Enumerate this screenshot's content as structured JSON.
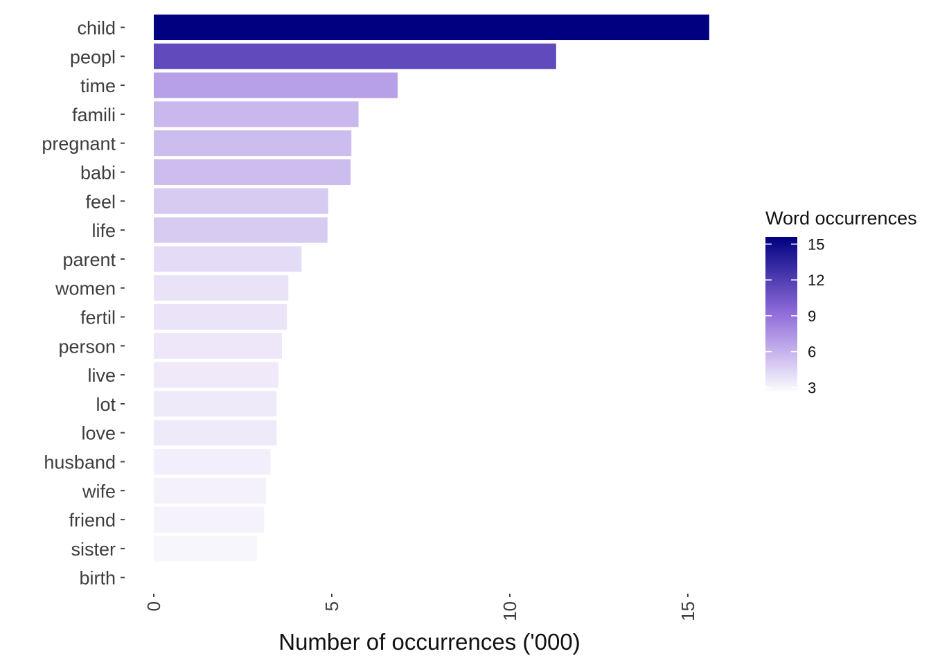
{
  "chart_data": {
    "type": "bar",
    "orientation": "horizontal",
    "categories": [
      "child",
      "peopl",
      "time",
      "famili",
      "pregnant",
      "babi",
      "feel",
      "life",
      "parent",
      "women",
      "fertil",
      "person",
      "live",
      "lot",
      "love",
      "husband",
      "wife",
      "friend",
      "sister",
      "birth"
    ],
    "values": [
      15.6,
      11.3,
      6.85,
      5.75,
      5.55,
      5.53,
      4.9,
      4.88,
      4.15,
      3.78,
      3.74,
      3.6,
      3.5,
      3.45,
      3.45,
      3.28,
      3.15,
      3.1,
      2.9,
      0
    ],
    "xlabel": "Number of occurrences ('000)",
    "ylabel": "",
    "xlim": [
      0,
      16
    ],
    "xticks": [
      0,
      5,
      10,
      15
    ],
    "xtick_labels": [
      "0",
      "5",
      "10",
      "15"
    ],
    "grid": false,
    "legend": {
      "title": "Word occurrences",
      "placement": "right",
      "type": "colorbar",
      "range": [
        2.5,
        15.6
      ],
      "ticks": [
        3,
        6,
        9,
        12,
        15
      ],
      "tick_labels": [
        "3",
        "6",
        "9",
        "12",
        "15"
      ],
      "color_low": "#ffffff",
      "color_high": "#000080",
      "color_mid": "#9370db"
    }
  }
}
